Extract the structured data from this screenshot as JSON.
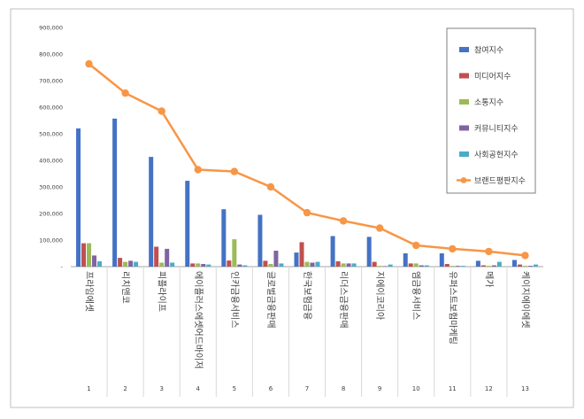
{
  "chart_data": {
    "type": "bar",
    "title": "",
    "xlabel": "",
    "ylabel": "",
    "ylim": [
      0,
      900000
    ],
    "yticks": [
      "-",
      "100,000",
      "200,000",
      "300,000",
      "400,000",
      "500,000",
      "600,000",
      "700,000",
      "800,000",
      "900,000"
    ],
    "categories": [
      "프라임에셋",
      "리치앤코",
      "피플라이프",
      "에이플러스에셋어드바이저",
      "인카금융서비스",
      "글로벌금융판매",
      "한국보험금융",
      "리더스금융판매",
      "지에이코리아",
      "엠금융서비스",
      "유퍼스트보험마케팅",
      "메가",
      "케이지에이에셋"
    ],
    "ranks": [
      "1",
      "2",
      "3",
      "4",
      "5",
      "6",
      "7",
      "8",
      "9",
      "10",
      "11",
      "12",
      "13"
    ],
    "series": [
      {
        "name": "참여지수",
        "color": "#4472c4",
        "values": [
          520000,
          557000,
          413000,
          323000,
          216000,
          195000,
          53000,
          115000,
          112000,
          50000,
          50000,
          22000,
          25000
        ]
      },
      {
        "name": "미디어지수",
        "color": "#c0504d",
        "values": [
          88000,
          33000,
          75000,
          12000,
          23000,
          22000,
          92000,
          20000,
          18000,
          12000,
          10000,
          5000,
          8000
        ]
      },
      {
        "name": "소통지수",
        "color": "#9bbb59",
        "values": [
          88000,
          18000,
          15000,
          12000,
          103000,
          10000,
          18000,
          12000,
          3000,
          12000,
          3000,
          3000,
          3000
        ]
      },
      {
        "name": "커뮤니티지수",
        "color": "#8064a2",
        "values": [
          42000,
          22000,
          67000,
          10000,
          8000,
          60000,
          15000,
          12000,
          2000,
          5000,
          3000,
          5000,
          3000
        ]
      },
      {
        "name": "사회공헌지수",
        "color": "#4bacc6",
        "values": [
          20000,
          18000,
          15000,
          8000,
          5000,
          12000,
          18000,
          12000,
          8000,
          5000,
          3000,
          18000,
          8000
        ]
      },
      {
        "name": "브랜드평판지수",
        "color": "#f79646",
        "type": "line",
        "values": [
          763000,
          653000,
          585000,
          365000,
          358000,
          300000,
          203000,
          172000,
          145000,
          80000,
          67000,
          57000,
          42000
        ]
      }
    ],
    "legend_position": "top-right"
  }
}
